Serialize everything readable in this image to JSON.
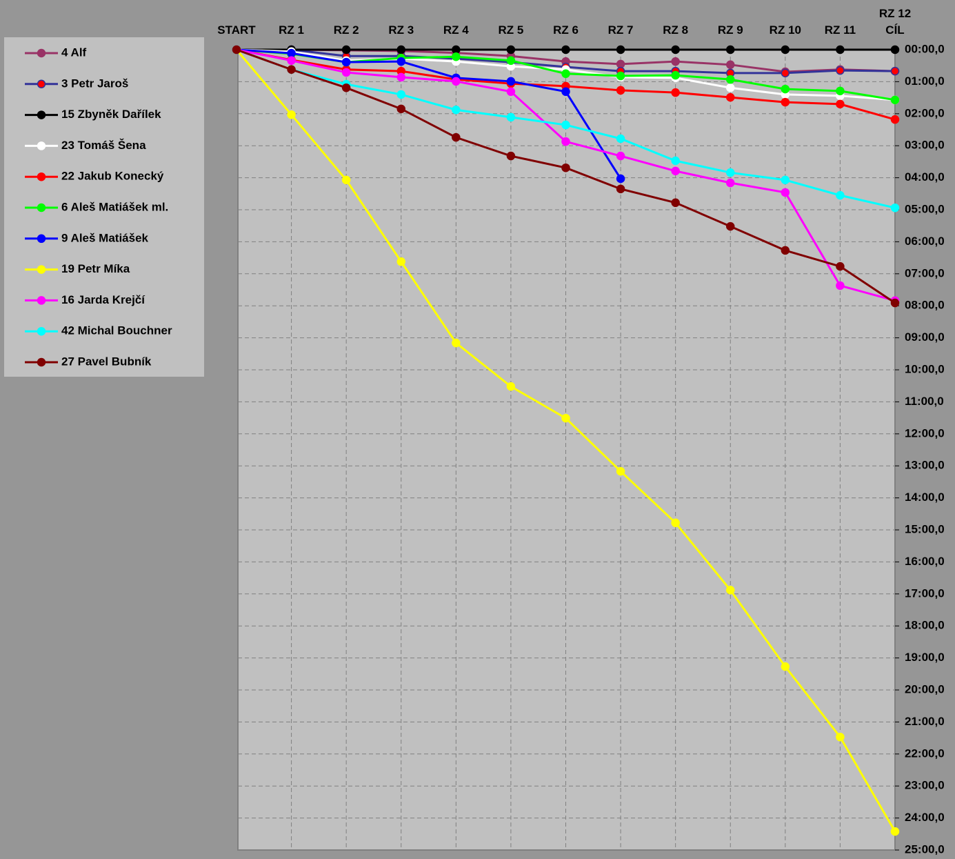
{
  "chart_data": {
    "type": "line",
    "categories": [
      "START",
      "RZ 1",
      "RZ 2",
      "RZ 3",
      "RZ 4",
      "RZ 5",
      "RZ 6",
      "RZ 7",
      "RZ 8",
      "RZ 9",
      "RZ 10",
      "RZ 11",
      "RZ 12\nCÍL"
    ],
    "ylim": [
      0,
      25
    ],
    "y_reversed": true,
    "grid": true,
    "legend": "left",
    "yticks": [
      {
        "value": 0,
        "label": "00:00,0"
      },
      {
        "value": 1,
        "label": "01:00,0"
      },
      {
        "value": 2,
        "label": "02:00,0"
      },
      {
        "value": 3,
        "label": "03:00,0"
      },
      {
        "value": 4,
        "label": "04:00,0"
      },
      {
        "value": 5,
        "label": "05:00,0"
      },
      {
        "value": 6,
        "label": "06:00,0"
      },
      {
        "value": 7,
        "label": "07:00,0"
      },
      {
        "value": 8,
        "label": "08:00,0"
      },
      {
        "value": 9,
        "label": "09:00,0"
      },
      {
        "value": 10,
        "label": "10:00,0"
      },
      {
        "value": 11,
        "label": "11:00,0"
      },
      {
        "value": 12,
        "label": "12:00,0"
      },
      {
        "value": 13,
        "label": "13:00,0"
      },
      {
        "value": 14,
        "label": "14:00,0"
      },
      {
        "value": 15,
        "label": "15:00,0"
      },
      {
        "value": 16,
        "label": "16:00,0"
      },
      {
        "value": 17,
        "label": "17:00,0"
      },
      {
        "value": 18,
        "label": "18:00,0"
      },
      {
        "value": 19,
        "label": "19:00,0"
      },
      {
        "value": 20,
        "label": "20:00,0"
      },
      {
        "value": 21,
        "label": "21:00,0"
      },
      {
        "value": 22,
        "label": "22:00,0"
      },
      {
        "value": 23,
        "label": "23:00,0"
      },
      {
        "value": 24,
        "label": "24:00,0"
      },
      {
        "value": 25,
        "label": "25:00,0"
      }
    ],
    "series": [
      {
        "name": "4 Alf",
        "color": "#993366",
        "marker_color": "#993366",
        "values": [
          0,
          0,
          0.02,
          0.04,
          0.1,
          0.2,
          0.37,
          0.45,
          0.37,
          0.47,
          0.69,
          0.62,
          0.67
        ]
      },
      {
        "name": "3 Petr Jaroš",
        "color": "#333399",
        "marker_color": "#ff0000",
        "values": [
          0,
          0,
          0.2,
          0.2,
          0.28,
          0.39,
          0.54,
          0.67,
          0.67,
          0.73,
          0.73,
          0.65,
          0.67
        ]
      },
      {
        "name": "15 Zbyněk Dařílek",
        "color": "#000000",
        "marker_color": "#000000",
        "values": [
          0,
          0,
          0,
          0,
          0,
          0,
          0,
          0,
          0,
          0,
          0,
          0,
          0
        ]
      },
      {
        "name": "23 Tomáš Šena",
        "color": "#ffffff",
        "marker_color": "#ffffff",
        "values": [
          0,
          0.06,
          0.34,
          0.28,
          0.37,
          0.52,
          0.62,
          0.86,
          0.88,
          1.19,
          1.4,
          1.44,
          1.57
        ]
      },
      {
        "name": "22 Jakub Konecký",
        "color": "#ff0000",
        "marker_color": "#ff0000",
        "values": [
          0,
          0.32,
          0.62,
          0.67,
          0.93,
          1.06,
          1.14,
          1.27,
          1.34,
          1.49,
          1.64,
          1.7,
          2.18
        ]
      },
      {
        "name": "6 Aleš Matiášek ml.",
        "color": "#00ff00",
        "marker_color": "#00ff00",
        "values": [
          0,
          0.13,
          0.39,
          0.26,
          0.22,
          0.34,
          0.75,
          0.82,
          0.8,
          0.93,
          1.23,
          1.29,
          1.57
        ]
      },
      {
        "name": "9 Aleš Matiášek",
        "color": "#0000ff",
        "marker_color": "#0000ff",
        "values": [
          0,
          0.11,
          0.39,
          0.37,
          0.88,
          0.99,
          1.31,
          4.03,
          null,
          null,
          null,
          null,
          null
        ]
      },
      {
        "name": "19 Petr Míka",
        "color": "#ffff00",
        "marker_color": "#ffff00",
        "values": [
          0,
          2.03,
          4.07,
          6.62,
          9.16,
          10.52,
          11.51,
          13.17,
          14.78,
          16.88,
          19.27,
          21.47,
          24.42
        ]
      },
      {
        "name": "16 Jarda Krejčí",
        "color": "#ff00ff",
        "marker_color": "#ff00ff",
        "values": [
          0,
          0.34,
          0.71,
          0.86,
          0.99,
          1.31,
          2.87,
          3.32,
          3.79,
          4.16,
          4.46,
          7.37,
          7.84
        ]
      },
      {
        "name": "42 Michal Bouchner",
        "color": "#00ffff",
        "marker_color": "#00ffff",
        "values": [
          0,
          0.62,
          1.08,
          1.4,
          1.88,
          2.11,
          2.35,
          2.78,
          3.47,
          3.84,
          4.07,
          4.55,
          4.94
        ]
      },
      {
        "name": "27 Pavel Bubník",
        "color": "#800000",
        "marker_color": "#800000",
        "values": [
          0,
          0.62,
          1.19,
          1.85,
          2.74,
          3.32,
          3.69,
          4.35,
          4.78,
          5.52,
          6.27,
          6.77,
          7.91
        ]
      }
    ]
  }
}
